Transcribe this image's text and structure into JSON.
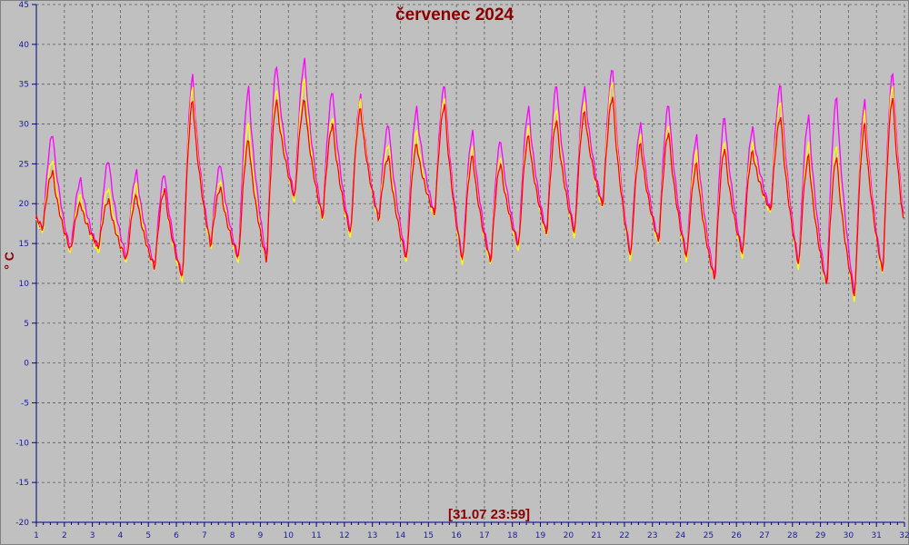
{
  "chart_data": {
    "type": "line",
    "title": "červenec 2024",
    "ylabel": "° C",
    "timestamp": "[31.07 23:59]",
    "xlim": [
      1,
      32
    ],
    "ylim": [
      -20,
      45
    ],
    "y_ticks": [
      -20,
      -15,
      -10,
      -5,
      0,
      5,
      10,
      15,
      20,
      25,
      30,
      35,
      40,
      45
    ],
    "x_ticks": [
      1,
      2,
      3,
      4,
      5,
      6,
      7,
      8,
      9,
      10,
      11,
      12,
      13,
      14,
      15,
      16,
      17,
      18,
      19,
      20,
      21,
      22,
      23,
      24,
      25,
      26,
      27,
      28,
      29,
      30,
      31,
      32
    ],
    "grid": true,
    "series_daily_extremes_note": "",
    "days": [
      1,
      2,
      3,
      4,
      5,
      6,
      7,
      8,
      9,
      10,
      11,
      12,
      13,
      14,
      15,
      16,
      17,
      18,
      19,
      20,
      21,
      22,
      23,
      24,
      25,
      26,
      27,
      28,
      29,
      30,
      31
    ],
    "series": [
      {
        "color": "#ff00ff",
        "min": [
          16.5,
          13.8,
          14.0,
          13.0,
          12.0,
          10.5,
          14.5,
          13.0,
          12.8,
          20.5,
          18.0,
          16.0,
          18.0,
          13.0,
          18.5,
          12.5,
          12.5,
          14.5,
          16.0,
          16.0,
          19.5,
          13.0,
          15.0,
          13.0,
          10.5,
          13.5,
          19.0,
          12.0,
          9.5,
          8.0,
          11.0
        ],
        "max": [
          28.8,
          23.0,
          25.5,
          24.0,
          23.8,
          36.0,
          25.0,
          34.5,
          37.5,
          38.0,
          34.2,
          33.5,
          30.0,
          32.0,
          35.0,
          29.0,
          28.0,
          32.0,
          35.0,
          34.5,
          37.0,
          30.0,
          32.5,
          28.5,
          31.0,
          29.5,
          35.0,
          31.0,
          33.5,
          33.0,
          36.5
        ]
      },
      {
        "color": "#ffff00",
        "min": [
          16.3,
          13.6,
          13.7,
          12.5,
          11.5,
          10.0,
          14.0,
          12.5,
          12.3,
          20.0,
          17.5,
          15.5,
          17.5,
          12.5,
          18.0,
          12.0,
          12.0,
          14.0,
          15.5,
          15.5,
          19.0,
          12.5,
          14.5,
          12.5,
          10.0,
          13.0,
          18.5,
          11.5,
          9.2,
          7.5,
          10.5
        ],
        "max": [
          25.5,
          21.0,
          22.0,
          22.5,
          22.0,
          34.5,
          23.0,
          30.0,
          34.5,
          35.5,
          31.0,
          33.0,
          27.5,
          29.0,
          33.5,
          27.0,
          26.0,
          29.5,
          32.0,
          32.5,
          35.5,
          28.5,
          30.0,
          26.5,
          28.0,
          27.5,
          33.0,
          27.5,
          27.5,
          31.5,
          35.0
        ]
      },
      {
        "color": "#ff0000",
        "min": [
          16.8,
          14.0,
          14.5,
          12.8,
          11.8,
          10.5,
          14.5,
          13.0,
          12.5,
          20.5,
          18.0,
          16.0,
          17.8,
          12.8,
          18.5,
          12.5,
          12.5,
          14.5,
          16.0,
          16.0,
          19.5,
          13.0,
          15.0,
          13.0,
          10.2,
          13.5,
          19.0,
          12.0,
          9.5,
          8.0,
          11.0
        ],
        "max": [
          24.0,
          20.0,
          20.5,
          21.0,
          21.8,
          33.0,
          22.0,
          28.0,
          33.0,
          33.0,
          30.0,
          32.0,
          26.0,
          27.5,
          32.5,
          26.0,
          25.0,
          28.5,
          30.5,
          31.5,
          33.5,
          27.5,
          29.0,
          25.0,
          27.0,
          26.5,
          31.0,
          26.0,
          26.0,
          30.0,
          33.5
        ]
      }
    ]
  }
}
